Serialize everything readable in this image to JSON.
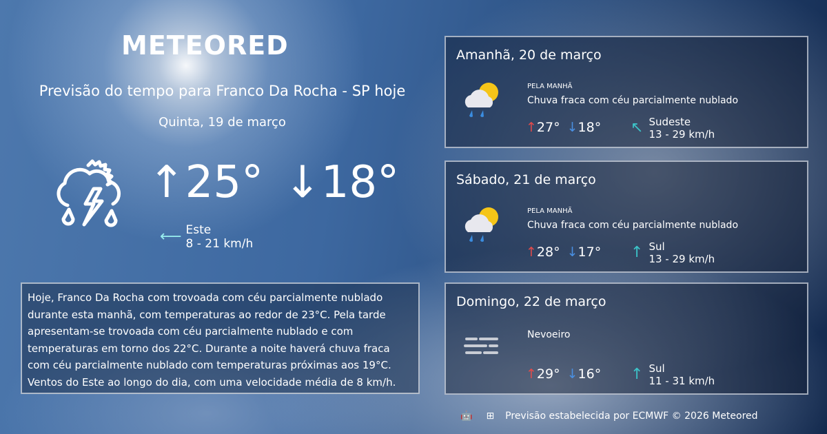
{
  "brand": "METEORED",
  "title": "Previsão do tempo para Franco Da Rocha - SP hoje",
  "today": {
    "date": "Quinta, 19 de março",
    "max": "25°",
    "min": "18°",
    "wind_dir": "Este",
    "wind_speed": "8 - 21 km/h",
    "icon": "thunderstorm-partly-cloudy-icon"
  },
  "description": "Hoje, Franco Da Rocha com trovoada com céu parcialmente nublado durante esta manhã, com temperaturas ao redor de 23°C. Pela tarde apresentam-se trovoada com céu parcialmente nublado e com temperaturas em torno dos 22°C. Durante a noite haverá chuva fraca com céu parcialmente nublado com temperaturas próximas aos 19°C. Ventos do Este ao longo do dia, com uma velocidade média de 8 km/h.",
  "forecast": [
    {
      "day": "Amanhã, 20 de março",
      "label": "PELA MANHÃ",
      "condition": "Chuva fraca com céu parcialmente nublado",
      "max": "27°",
      "min": "18°",
      "wind_dir": "Sudeste",
      "wind_speed": "13 - 29 km/h",
      "icon": "rain-partly-cloudy-icon"
    },
    {
      "day": "Sábado, 21 de março",
      "label": "PELA MANHÃ",
      "condition": "Chuva fraca com céu parcialmente nublado",
      "max": "28°",
      "min": "17°",
      "wind_dir": "Sul",
      "wind_speed": "13 - 29 km/h",
      "icon": "rain-partly-cloudy-icon"
    },
    {
      "day": "Domingo, 22 de março",
      "label": "",
      "condition": "Nevoeiro",
      "max": "29°",
      "min": "16°",
      "wind_dir": "Sul",
      "wind_speed": "11 - 31 km/h",
      "icon": "fog-icon"
    }
  ],
  "footer": "Previsão estabelecida por ECMWF © 2026 Meteored",
  "colors": {
    "max": "#e24b4b",
    "min": "#4a90e2",
    "wind": "#3cc3c8"
  }
}
